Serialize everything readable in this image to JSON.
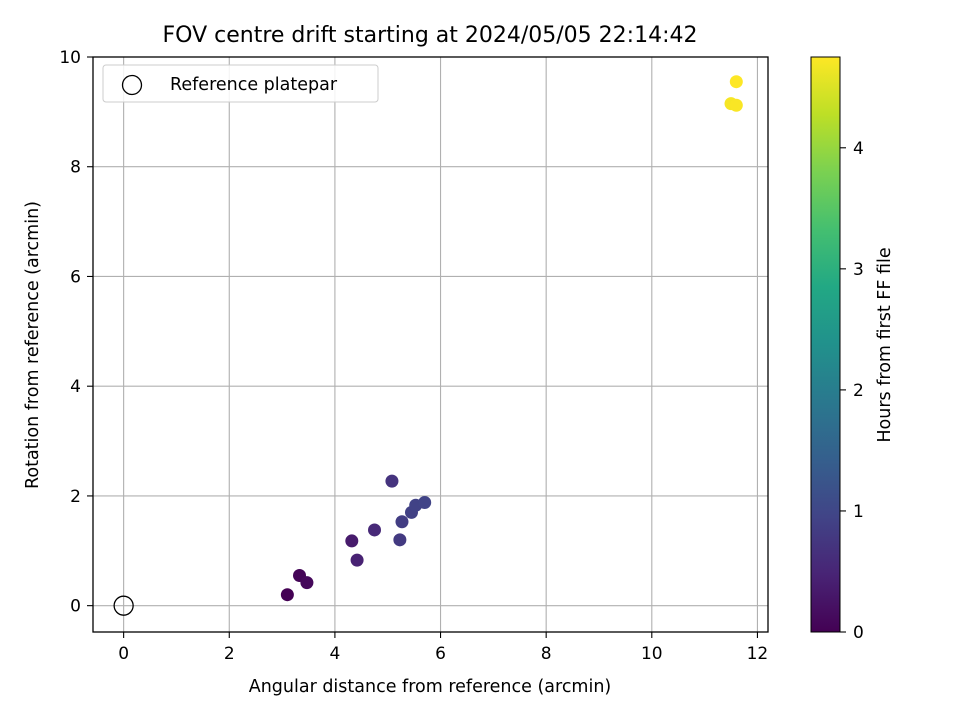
{
  "chart_data": {
    "type": "scatter",
    "title": "FOV centre drift starting at 2024/05/05 22:14:42",
    "xlabel": "Angular distance from reference (arcmin)",
    "ylabel": "Rotation from reference (arcmin)",
    "xlim": [
      -0.58,
      12.2
    ],
    "ylim": [
      -0.48,
      10.0
    ],
    "xticks": [
      0,
      2,
      4,
      6,
      8,
      10,
      12
    ],
    "yticks": [
      0,
      2,
      4,
      6,
      8,
      10
    ],
    "grid": true,
    "legend": {
      "placement": "top-left",
      "entries": [
        "Reference platepar"
      ]
    },
    "reference_point": {
      "x": 0,
      "y": 0,
      "label": "Reference platepar"
    },
    "colorbar": {
      "label": "Hours from first FF file",
      "colormap": "viridis",
      "range": [
        0,
        4.75
      ],
      "ticks": [
        0,
        1,
        2,
        3,
        4
      ]
    },
    "points": [
      {
        "x": 3.1,
        "y": 0.2,
        "hours": 0.0
      },
      {
        "x": 3.33,
        "y": 0.55,
        "hours": 0.05
      },
      {
        "x": 3.47,
        "y": 0.42,
        "hours": 0.1
      },
      {
        "x": 4.32,
        "y": 1.18,
        "hours": 0.35
      },
      {
        "x": 4.42,
        "y": 0.83,
        "hours": 0.45
      },
      {
        "x": 4.75,
        "y": 1.38,
        "hours": 0.55
      },
      {
        "x": 5.08,
        "y": 2.27,
        "hours": 0.7
      },
      {
        "x": 5.23,
        "y": 1.2,
        "hours": 0.8
      },
      {
        "x": 5.27,
        "y": 1.53,
        "hours": 0.85
      },
      {
        "x": 5.45,
        "y": 1.7,
        "hours": 0.9
      },
      {
        "x": 5.53,
        "y": 1.83,
        "hours": 0.92
      },
      {
        "x": 5.7,
        "y": 1.88,
        "hours": 0.95
      },
      {
        "x": 11.5,
        "y": 9.15,
        "hours": 4.7
      },
      {
        "x": 11.6,
        "y": 9.12,
        "hours": 4.72
      },
      {
        "x": 11.6,
        "y": 9.55,
        "hours": 4.75
      }
    ]
  }
}
